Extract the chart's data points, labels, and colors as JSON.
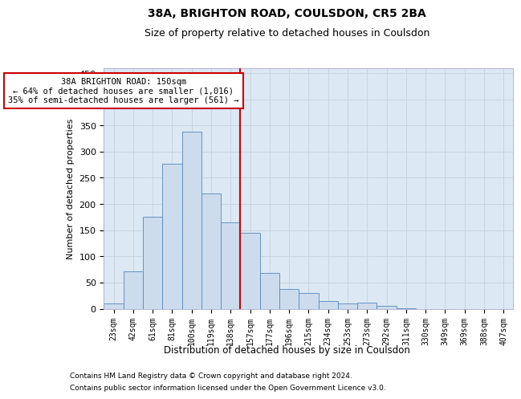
{
  "title1": "38A, BRIGHTON ROAD, COULSDON, CR5 2BA",
  "title2": "Size of property relative to detached houses in Coulsdon",
  "xlabel": "Distribution of detached houses by size in Coulsdon",
  "ylabel": "Number of detached properties",
  "footnote1": "Contains HM Land Registry data © Crown copyright and database right 2024.",
  "footnote2": "Contains public sector information licensed under the Open Government Licence v3.0.",
  "bar_labels": [
    "23sqm",
    "42sqm",
    "61sqm",
    "81sqm",
    "100sqm",
    "119sqm",
    "138sqm",
    "157sqm",
    "177sqm",
    "196sqm",
    "215sqm",
    "234sqm",
    "253sqm",
    "273sqm",
    "292sqm",
    "311sqm",
    "330sqm",
    "349sqm",
    "369sqm",
    "388sqm",
    "407sqm"
  ],
  "bar_values": [
    10,
    72,
    175,
    277,
    338,
    220,
    165,
    145,
    68,
    37,
    30,
    15,
    10,
    12,
    5,
    1,
    0,
    0,
    0,
    0,
    0
  ],
  "bar_color": "#ccdcec",
  "bar_edge_color": "#5588bb",
  "grid_color": "#c8d4e0",
  "bg_color": "#dce8f4",
  "vline_color": "#cc0000",
  "annotation_title": "38A BRIGHTON ROAD: 150sqm",
  "annotation_line1": "← 64% of detached houses are smaller (1,016)",
  "annotation_line2": "35% of semi-detached houses are larger (561) →",
  "annotation_box_color": "#ffffff",
  "annotation_box_edge": "#cc0000",
  "ylim": [
    0,
    460
  ],
  "yticks": [
    0,
    50,
    100,
    150,
    200,
    250,
    300,
    350,
    400,
    450
  ]
}
